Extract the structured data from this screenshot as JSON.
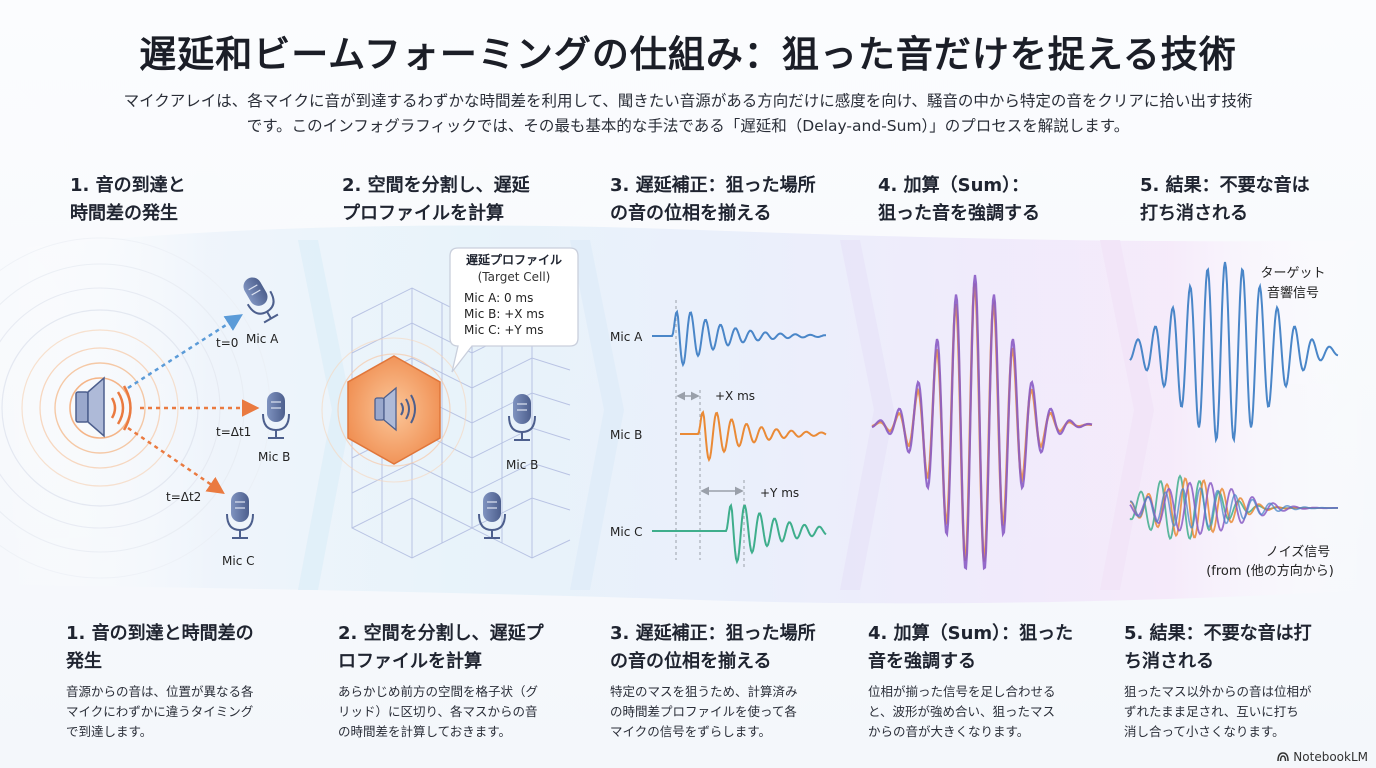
{
  "title": "遅延和ビームフォーミングの仕組み：狙った音だけを捉える技術",
  "intro_line1": "マイクアレイは、各マイクに音が到達するわずかな時間差を利用して、聞きたい音源がある方向だけに感度を向け、騒音の中から特定の音をクリアに拾い出す技術",
  "intro_line2": "です。このインフォグラフィックでは、その最も基本的な手法である「遅延和（Delay-and-Sum）」のプロセスを解説します。",
  "steps": [
    {
      "head": "1. 音の到達と\n   時間差の発生",
      "foot_title": "1. 音の到達と時間差の\n   発生",
      "foot_body": "音源からの音は、位置が異なる各\nマイクにわずかに違うタイミング\nで到達します。"
    },
    {
      "head": "2. 空間を分割し、遅延\n   プロファイルを計算",
      "foot_title": "2. 空間を分割し、遅延プ\n   ロファイルを計算",
      "foot_body": "あらかじめ前方の空間を格子状（グ\nリッド）に区切り、各マスからの音\nの時間差を計算しておきます。"
    },
    {
      "head": "3. 遅延補正：狙った場所\n   の音の位相を揃える",
      "foot_title": "3. 遅延補正：狙った場所\n   の音の位相を揃える",
      "foot_body": "特定のマスを狙うため、計算済み\nの時間差プロファイルを使って各\nマイクの信号をずらします。"
    },
    {
      "head": "4. 加算（Sum）：\n   狙った音を強調する",
      "foot_title": "4. 加算（Sum）：狙った\n   音を強調する",
      "foot_body": "位相が揃った信号を足し合わせる\nと、波形が強め合い、狙ったマス\nからの音が大きくなります。"
    },
    {
      "head": "5. 結果：不要な音は\n   打ち消される",
      "foot_title": "5. 結果：不要な音は打\n   ち消される",
      "foot_body": "狙ったマス以外からの音は位相が\nずれたまま足され、互いに打ち\n消し合って小さくなります。"
    }
  ],
  "panel1": {
    "mic_a": "Mic A",
    "mic_b": "Mic B",
    "mic_c": "Mic C",
    "t0": "t=0",
    "t1": "t=Δt1",
    "t2": "t=Δt2"
  },
  "panel2": {
    "bubble_title": "遅延プロファイル",
    "bubble_sub": "(Target Cell)",
    "bubble_a": "Mic A: 0 ms",
    "bubble_b": "Mic B: +X ms",
    "bubble_c": "Mic C: +Y ms",
    "mic_b": "Mic B"
  },
  "panel3": {
    "mic_a": "Mic A",
    "mic_b": "Mic B",
    "mic_c": "Mic C",
    "delay_x": "+X ms",
    "delay_y": "+Y ms"
  },
  "panel5": {
    "target_line1": "ターゲット",
    "target_line2": "音響信号",
    "noise_line1": "ノイズ信号",
    "noise_line2": "(from (他の方向から)"
  },
  "brand": "NotebookLM",
  "colors": {
    "blue": "#4a86c8",
    "orange": "#ea8a36",
    "green": "#3fae8c",
    "purple": "#8a5cc4",
    "speaker": "#8ea0c8",
    "mic": "#5a6f9c"
  }
}
